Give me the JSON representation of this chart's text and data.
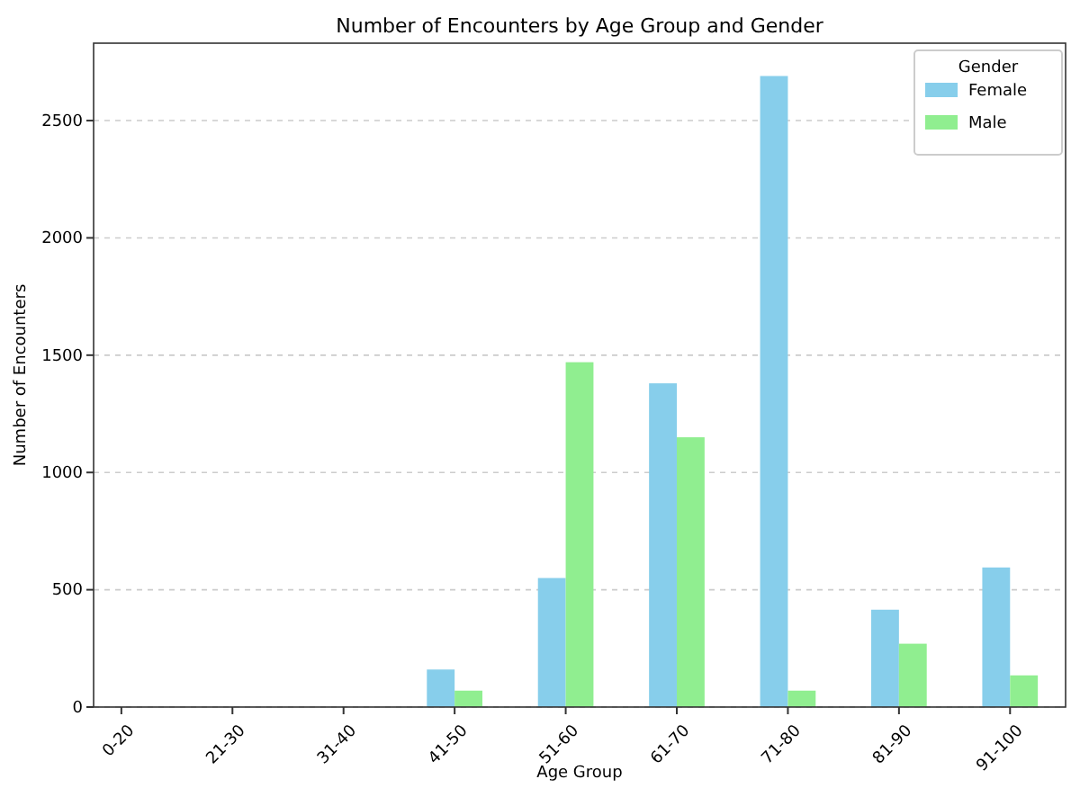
{
  "chart_data": {
    "type": "bar",
    "title": "Number of Encounters by Age Group and Gender",
    "xlabel": "Age Group",
    "ylabel": "Number of Encounters",
    "legend_title": "Gender",
    "categories": [
      "0-20",
      "21-30",
      "31-40",
      "41-50",
      "51-60",
      "61-70",
      "71-80",
      "81-90",
      "91-100"
    ],
    "series": [
      {
        "name": "Female",
        "color": "#87ceeb",
        "values": [
          0,
          0,
          0,
          160,
          550,
          1380,
          2690,
          415,
          595
        ]
      },
      {
        "name": "Male",
        "color": "#90ee90",
        "values": [
          0,
          0,
          0,
          70,
          1470,
          1150,
          70,
          270,
          135
        ]
      }
    ],
    "ylim": [
      0,
      2830
    ],
    "yticks": [
      0,
      500,
      1000,
      1500,
      2000,
      2500
    ],
    "grid": "y",
    "legend": "top right"
  }
}
